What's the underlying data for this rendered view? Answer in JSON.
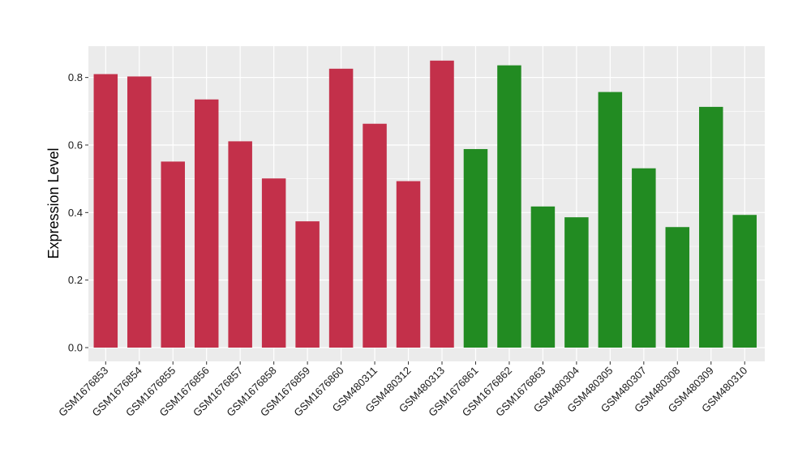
{
  "chart_data": {
    "type": "bar",
    "title": "",
    "xlabel": "",
    "ylabel": "Expression Level",
    "ylim": [
      0.0,
      0.89
    ],
    "yticks": [
      0.0,
      0.2,
      0.4,
      0.6,
      0.8
    ],
    "ytick_labels": [
      "0.0",
      "0.2",
      "0.4",
      "0.6",
      "0.8"
    ],
    "grid": true,
    "legend": "none",
    "categories": [
      "GSM1676853",
      "GSM1676854",
      "GSM1676855",
      "GSM1676856",
      "GSM1676857",
      "GSM1676858",
      "GSM1676859",
      "GSM1676860",
      "GSM480311",
      "GSM480312",
      "GSM480313",
      "GSM1676861",
      "GSM1676862",
      "GSM1676863",
      "GSM480304",
      "GSM480305",
      "GSM480307",
      "GSM480308",
      "GSM480309",
      "GSM480310"
    ],
    "values": [
      0.81,
      0.803,
      0.551,
      0.735,
      0.611,
      0.501,
      0.374,
      0.826,
      0.663,
      0.493,
      0.85,
      0.588,
      0.836,
      0.418,
      0.386,
      0.757,
      0.531,
      0.357,
      0.713,
      0.393
    ],
    "bar_colors": [
      "#C3304A",
      "#C3304A",
      "#C3304A",
      "#C3304A",
      "#C3304A",
      "#C3304A",
      "#C3304A",
      "#C3304A",
      "#C3304A",
      "#C3304A",
      "#C3304A",
      "#228B22",
      "#228B22",
      "#228B22",
      "#228B22",
      "#228B22",
      "#228B22",
      "#228B22",
      "#228B22",
      "#228B22"
    ],
    "panel_background": "#EBEBEB",
    "grid_color": "#FFFFFF"
  }
}
